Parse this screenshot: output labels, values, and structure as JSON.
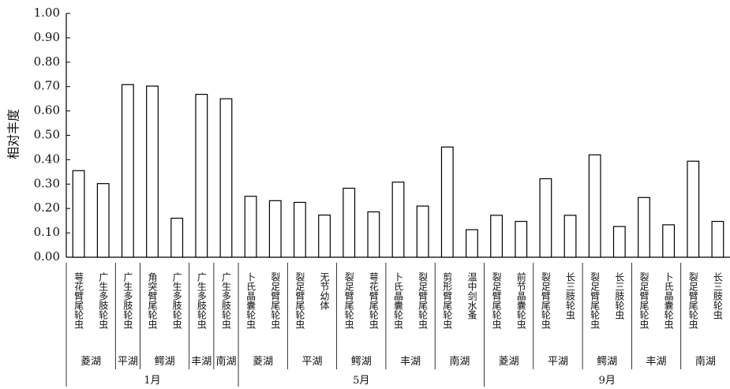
{
  "chart_data": {
    "type": "bar",
    "ylabel": "相对丰度",
    "ylim": [
      0,
      1.0
    ],
    "yticks": [
      "0.00",
      "0.10",
      "0.20",
      "0.30",
      "0.40",
      "0.50",
      "0.60",
      "0.70",
      "0.80",
      "0.90",
      "1.00"
    ],
    "groups": [
      {
        "month": "1月",
        "lakes": [
          {
            "name": "菱湖",
            "bars": [
              {
                "label": "萼花臂尾轮虫",
                "value": 0.355
              },
              {
                "label": "广生多肢轮虫",
                "value": 0.302
              }
            ]
          },
          {
            "name": "平湖",
            "bars": [
              {
                "label": "广生多肢轮虫",
                "value": 0.708
              }
            ]
          },
          {
            "name": "鳄湖",
            "bars": [
              {
                "label": "角突臂尾轮虫",
                "value": 0.702
              },
              {
                "label": "广生多肢轮虫",
                "value": 0.16
              }
            ]
          },
          {
            "name": "丰湖",
            "bars": [
              {
                "label": "广生多肢轮虫",
                "value": 0.668
              }
            ]
          },
          {
            "name": "南湖",
            "bars": [
              {
                "label": "广生多肢轮虫",
                "value": 0.65
              }
            ]
          }
        ]
      },
      {
        "month": "5月",
        "lakes": [
          {
            "name": "菱湖",
            "bars": [
              {
                "label": "卜氏晶囊轮虫",
                "value": 0.25
              },
              {
                "label": "裂足臂尾轮虫",
                "value": 0.232
              }
            ]
          },
          {
            "name": "平湖",
            "bars": [
              {
                "label": "裂足臂尾轮虫",
                "value": 0.225
              },
              {
                "label": "无节幼体",
                "value": 0.173
              }
            ]
          },
          {
            "name": "鳄湖",
            "bars": [
              {
                "label": "裂足臂尾轮虫",
                "value": 0.283
              },
              {
                "label": "萼花臂尾轮虫",
                "value": 0.186
              }
            ]
          },
          {
            "name": "丰湖",
            "bars": [
              {
                "label": "卜氏晶囊轮虫",
                "value": 0.308
              },
              {
                "label": "裂足臂尾轮虫",
                "value": 0.21
              }
            ]
          },
          {
            "name": "南湖",
            "bars": [
              {
                "label": "剪形臂尾轮虫",
                "value": 0.452
              },
              {
                "label": "温中剑水蚤",
                "value": 0.113
              }
            ]
          }
        ]
      },
      {
        "month": "9月",
        "lakes": [
          {
            "name": "菱湖",
            "bars": [
              {
                "label": "裂足臂尾轮虫",
                "value": 0.172
              },
              {
                "label": "前节晶囊轮虫",
                "value": 0.147
              }
            ]
          },
          {
            "name": "平湖",
            "bars": [
              {
                "label": "裂足臂尾轮虫",
                "value": 0.322
              },
              {
                "label": "长三肢轮虫",
                "value": 0.172
              }
            ]
          },
          {
            "name": "鳄湖",
            "bars": [
              {
                "label": "裂足臂尾轮虫",
                "value": 0.42
              },
              {
                "label": "长三肢轮虫",
                "value": 0.126
              }
            ]
          },
          {
            "name": "丰湖",
            "bars": [
              {
                "label": "裂足臂尾轮虫",
                "value": 0.245
              },
              {
                "label": "卜氏晶囊轮虫",
                "value": 0.133
              }
            ]
          },
          {
            "name": "南湖",
            "bars": [
              {
                "label": "裂足臂尾轮虫",
                "value": 0.394
              },
              {
                "label": "长三肢轮虫",
                "value": 0.147
              }
            ]
          }
        ]
      }
    ],
    "grid": false,
    "legend": "none"
  }
}
